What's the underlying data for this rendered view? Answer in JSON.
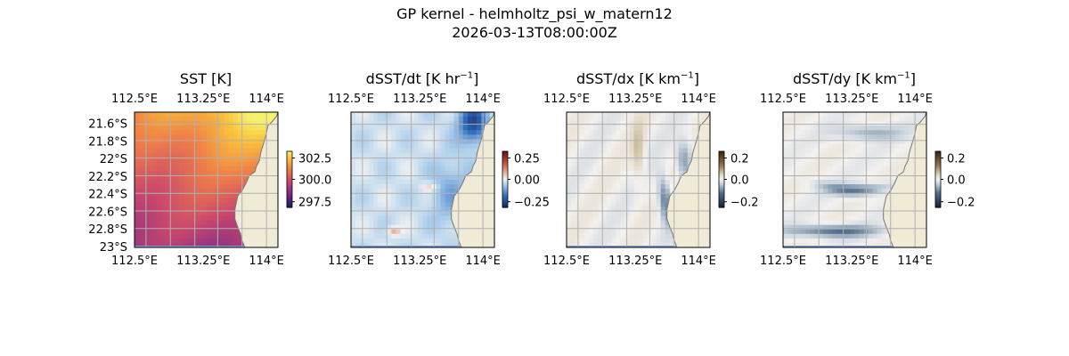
{
  "figure": {
    "title_line1": "GP kernel - helmholtz_psi_w_matern12",
    "title_line2": "2026-03-13T08:00:00Z"
  },
  "colors": {
    "land": "#efebd6",
    "ocean_edge": "#7a9ad4",
    "grid": "#b0b0b0",
    "coast": "#777777"
  },
  "chart_data": [
    {
      "type": "heatmap",
      "title_main": "SST [K]",
      "title_sup": "",
      "title_end": "",
      "x_ticks": [
        "112.5°E",
        "113.25°E",
        "114°E"
      ],
      "y_ticks": [
        "21.6°S",
        "21.8°S",
        "22°S",
        "22.2°S",
        "22.4°S",
        "22.6°S",
        "22.8°S",
        "23°S"
      ],
      "colorbar": {
        "ticks": [
          "302.5",
          "300.0",
          "297.5"
        ],
        "cmap": "thermal"
      },
      "lon_range": [
        112.5,
        114.1
      ],
      "lat_range": [
        -23.0,
        -21.5
      ],
      "grid": true
    },
    {
      "type": "heatmap",
      "title_main": "dSST/dt [K hr",
      "title_sup": "−1",
      "title_end": "]",
      "x_ticks": [
        "112.5°E",
        "113.25°E",
        "114°E"
      ],
      "y_ticks": [],
      "colorbar": {
        "ticks": [
          "0.25",
          "0.00",
          "−0.25"
        ],
        "cmap": "balance"
      },
      "lon_range": [
        112.5,
        114.1
      ],
      "lat_range": [
        -23.0,
        -21.5
      ],
      "grid": true
    },
    {
      "type": "heatmap",
      "title_main": "dSST/dx [K km",
      "title_sup": "−1",
      "title_end": "]",
      "x_ticks": [
        "112.5°E",
        "113.25°E",
        "114°E"
      ],
      "y_ticks": [],
      "colorbar": {
        "ticks": [
          "0.2",
          "0.0",
          "−0.2"
        ],
        "cmap": "diff"
      },
      "lon_range": [
        112.5,
        114.1
      ],
      "lat_range": [
        -23.0,
        -21.5
      ],
      "grid": true
    },
    {
      "type": "heatmap",
      "title_main": "dSST/dy [K km",
      "title_sup": "−1",
      "title_end": "]",
      "x_ticks": [
        "112.5°E",
        "113.25°E",
        "114°E"
      ],
      "y_ticks": [],
      "colorbar": {
        "ticks": [
          "0.2",
          "0.0",
          "−0.2"
        ],
        "cmap": "diff"
      },
      "lon_range": [
        112.5,
        114.1
      ],
      "lat_range": [
        -23.0,
        -21.5
      ],
      "grid": true
    }
  ]
}
